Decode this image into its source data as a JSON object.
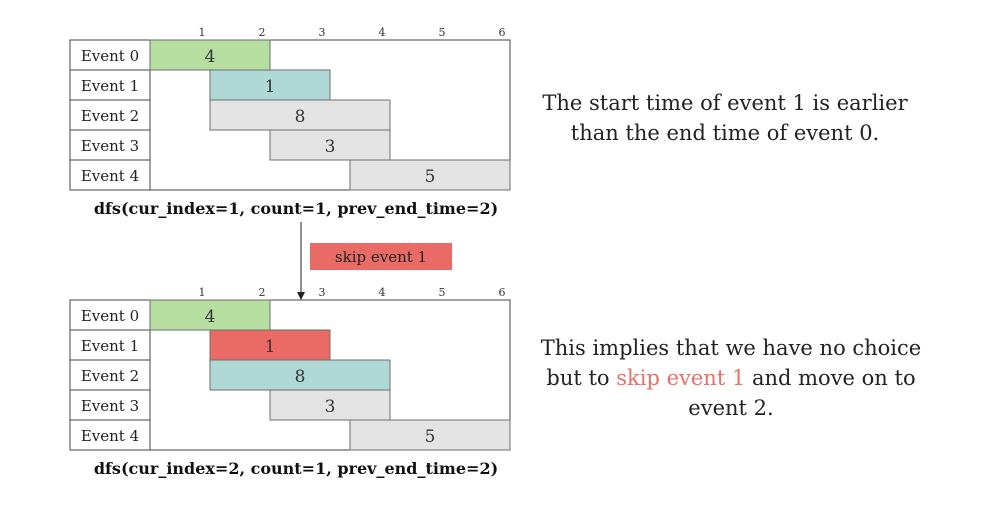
{
  "time_ticks": [
    "1",
    "2",
    "3",
    "4",
    "5",
    "6"
  ],
  "events": [
    "Event 0",
    "Event 1",
    "Event 2",
    "Event 3",
    "Event 4"
  ],
  "colors": {
    "green": "#b6dea1",
    "teal": "#afd8d6",
    "red": "#ea6b66",
    "gray": "#e3e3e3",
    "stroke": "#6f6f6f",
    "highlight_text": "#e8706a"
  },
  "panels": [
    {
      "caption": "dfs(cur_index=1, count=1, prev_end_time=2)",
      "bars": [
        {
          "event": 0,
          "start": 0,
          "end": 2,
          "label": "4",
          "color": "green"
        },
        {
          "event": 1,
          "start": 1,
          "end": 3,
          "label": "1",
          "color": "teal"
        },
        {
          "event": 2,
          "start": 1,
          "end": 4,
          "label": "8",
          "color": "gray"
        },
        {
          "event": 3,
          "start": 2,
          "end": 4,
          "label": "3",
          "color": "gray"
        },
        {
          "event": 4,
          "start": 3.333,
          "end": 6,
          "label": "5",
          "color": "gray"
        }
      ]
    },
    {
      "caption": "dfs(cur_index=2, count=1, prev_end_time=2)",
      "bars": [
        {
          "event": 0,
          "start": 0,
          "end": 2,
          "label": "4",
          "color": "green"
        },
        {
          "event": 1,
          "start": 1,
          "end": 3,
          "label": "1",
          "color": "red"
        },
        {
          "event": 2,
          "start": 1,
          "end": 4,
          "label": "8",
          "color": "teal"
        },
        {
          "event": 3,
          "start": 2,
          "end": 4,
          "label": "3",
          "color": "gray"
        },
        {
          "event": 4,
          "start": 3.333,
          "end": 6,
          "label": "5",
          "color": "gray"
        }
      ]
    }
  ],
  "transition_label": "skip event 1",
  "note1": {
    "line1": "The start time of event 1 is earlier",
    "line2": "than the end time of event 0."
  },
  "note2": {
    "line1": "This implies that we have no choice",
    "line2_pre": "but to ",
    "line2_hl": "skip event 1",
    "line2_post": " and move on to",
    "line3": "event 2."
  }
}
